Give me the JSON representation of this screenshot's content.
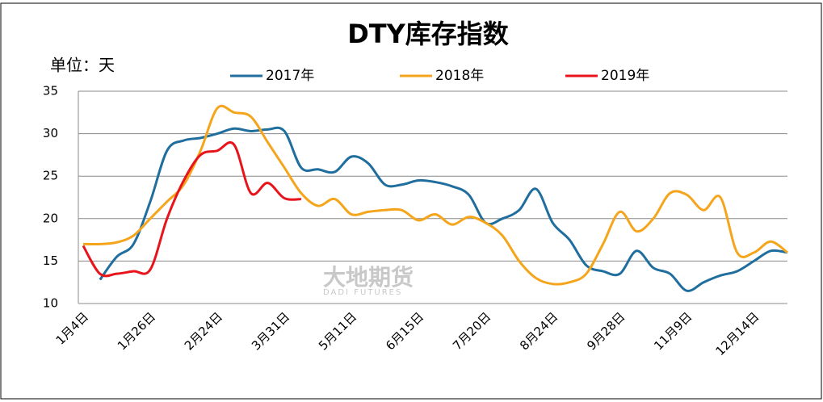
{
  "chart_data": {
    "type": "line",
    "title": "DTY库存指数",
    "y_label": "单位：天",
    "watermark": "大地期货",
    "watermark_sub": "DADI FUTURES",
    "categories": [
      "1月4日",
      null,
      null,
      null,
      "1月26日",
      null,
      null,
      null,
      "2月24日",
      null,
      null,
      null,
      "3月31日",
      null,
      null,
      null,
      "5月11日",
      null,
      null,
      null,
      "6月15日",
      null,
      null,
      null,
      "7月20日",
      null,
      null,
      null,
      "8月24日",
      null,
      null,
      null,
      "9月28日",
      null,
      null,
      null,
      "11月9日",
      null,
      null,
      null,
      "12月14日",
      null,
      null
    ],
    "series": [
      {
        "name": "2017年",
        "color": "#1f6e9e",
        "values": [
          null,
          12.8,
          15.5,
          17,
          22,
          28,
          29.2,
          29.5,
          30,
          30.6,
          30.3,
          30.5,
          30.3,
          26,
          25.8,
          25.5,
          27.3,
          26.5,
          24,
          24,
          24.5,
          24.3,
          23.8,
          22.8,
          19.5,
          20,
          21,
          23.5,
          19.5,
          17.5,
          14.5,
          13.8,
          13.5,
          16.2,
          14.2,
          13.5,
          11.5,
          12.5,
          13.3,
          13.8,
          15,
          16.2,
          16
        ]
      },
      {
        "name": "2018年",
        "color": "#f5a51c",
        "values": [
          17,
          17,
          17.2,
          18,
          20,
          22,
          24,
          28,
          33,
          32.5,
          32,
          29,
          26,
          23,
          21.5,
          22.3,
          20.5,
          20.8,
          21,
          21,
          19.8,
          20.5,
          19.3,
          20.2,
          19.5,
          18,
          15,
          13,
          12.3,
          12.5,
          13.5,
          17,
          20.8,
          18.5,
          20,
          23,
          22.8,
          21,
          22.5,
          16,
          16,
          17.3,
          16
        ]
      },
      {
        "name": "2019年",
        "color": "#e8141b",
        "values": [
          16.8,
          13.5,
          13.5,
          13.8,
          14,
          20,
          24.5,
          27.5,
          28,
          28.7,
          23,
          24.2,
          22.4,
          22.3,
          null,
          null,
          null,
          null,
          null,
          null,
          null,
          null,
          null,
          null,
          null,
          null,
          null,
          null,
          null,
          null,
          null,
          null,
          null,
          null,
          null,
          null,
          null,
          null,
          null,
          null,
          null,
          null,
          null
        ]
      }
    ],
    "ylim": [
      10,
      35
    ],
    "yticks": [
      10,
      15,
      20,
      25,
      30,
      35
    ],
    "grid": true,
    "legend": "top"
  }
}
